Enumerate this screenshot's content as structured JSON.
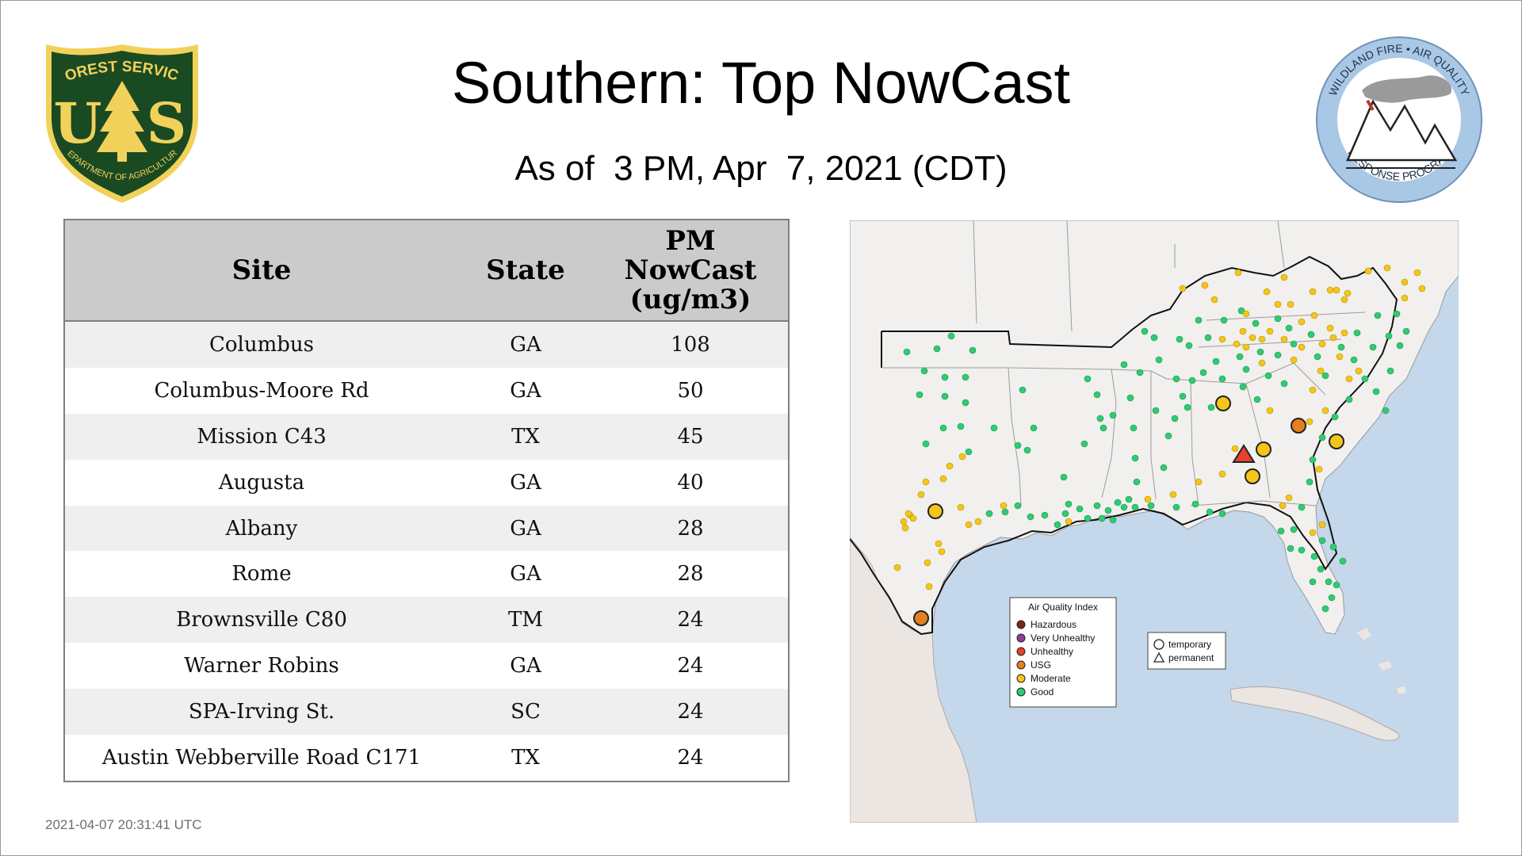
{
  "title": "Southern: Top NowCast",
  "subtitle": "As of  3 PM, Apr  7, 2021 (CDT)",
  "logos": {
    "usfs": {
      "top_text": "FOREST SERVICE",
      "left_letter": "U",
      "right_letter": "S",
      "bottom_text": "DEPARTMENT OF AGRICULTURE"
    },
    "wfa": {
      "top_text": "WILDLAND FIRE • AIR QUALITY",
      "bottom_text": "RESPONSE PROGRAM"
    }
  },
  "table": {
    "headers": {
      "site": "Site",
      "state": "State",
      "pm_line1": "PM",
      "pm_line2": "NowCast",
      "pm_line3": "(ug/m3)"
    },
    "rows": [
      {
        "site": "Columbus",
        "state": "GA",
        "value": "108"
      },
      {
        "site": "Columbus-Moore Rd",
        "state": "GA",
        "value": "50"
      },
      {
        "site": "Mission C43",
        "state": "TX",
        "value": "45"
      },
      {
        "site": "Augusta",
        "state": "GA",
        "value": "40"
      },
      {
        "site": "Albany",
        "state": "GA",
        "value": "28"
      },
      {
        "site": "Rome",
        "state": "GA",
        "value": "28"
      },
      {
        "site": "Brownsville C80",
        "state": "TM",
        "value": "24"
      },
      {
        "site": "Warner Robins",
        "state": "GA",
        "value": "24"
      },
      {
        "site": "SPA-Irving St.",
        "state": "SC",
        "value": "24"
      },
      {
        "site": "Austin Webberville Road C171",
        "state": "TX",
        "value": "24"
      }
    ]
  },
  "legend": {
    "title": "Air Quality Index",
    "items": [
      {
        "label": "Hazardous",
        "color": "#7e2418"
      },
      {
        "label": "Very Unhealthy",
        "color": "#8f3f97"
      },
      {
        "label": "Unhealthy",
        "color": "#e8402a"
      },
      {
        "label": "USG",
        "color": "#e67e22"
      },
      {
        "label": "Moderate",
        "color": "#f5c518"
      },
      {
        "label": "Good",
        "color": "#2ecc71"
      }
    ]
  },
  "shape_legend": {
    "temporary": "temporary",
    "permanent": "permanent"
  },
  "colors": {
    "water": "#c5d7ea",
    "land": "#f1f0ee",
    "good": "#2ecc71",
    "moderate": "#f5c518",
    "usg": "#e67e22",
    "unhealthy": "#e8402a",
    "usfs_green": "#1a4a22",
    "usfs_gold": "#f2d15b"
  },
  "timestamp": "2021-04-07 20:31:41 UTC"
}
